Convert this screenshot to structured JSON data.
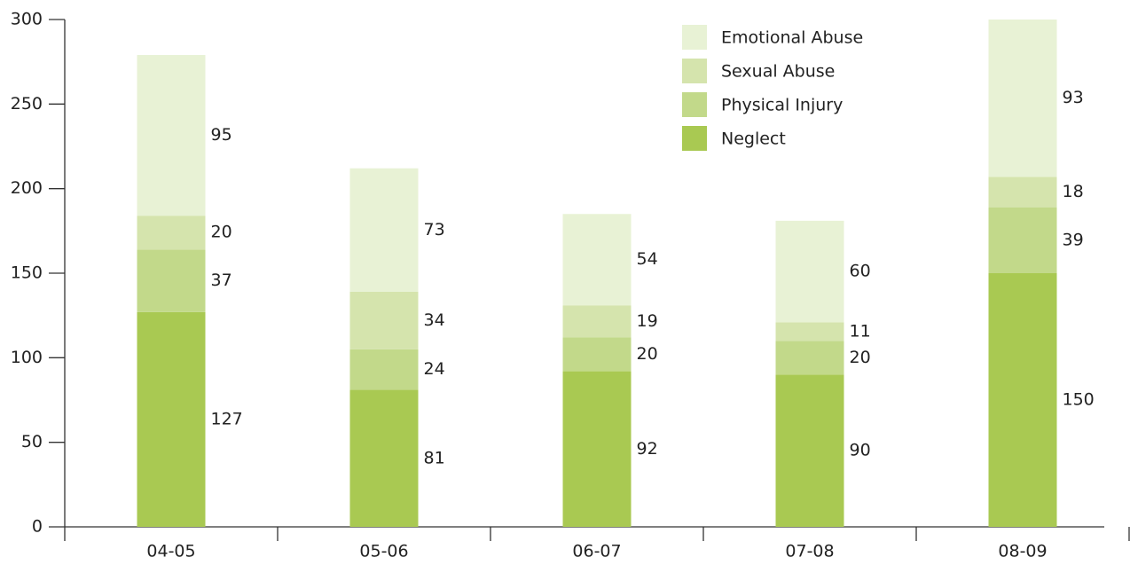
{
  "chart_data": {
    "type": "stacked_bar",
    "categories": [
      "04-05",
      "05-06",
      "06-07",
      "07-08",
      "08-09"
    ],
    "series": [
      {
        "name": "Neglect",
        "color": "#a9c952",
        "values": [
          127,
          81,
          92,
          90,
          150
        ]
      },
      {
        "name": "Physical Injury",
        "color": "#c2d98a",
        "values": [
          37,
          24,
          20,
          20,
          39
        ]
      },
      {
        "name": "Sexual Abuse",
        "color": "#d5e4ad",
        "values": [
          20,
          34,
          19,
          11,
          18
        ]
      },
      {
        "name": "Emotional Abuse",
        "color": "#e8f2d5",
        "values": [
          95,
          73,
          54,
          60,
          93
        ]
      }
    ],
    "ylim": [
      0,
      300
    ],
    "yticks": [
      0,
      50,
      100,
      150,
      200,
      250,
      300
    ],
    "grid": false,
    "legend": "top-right"
  }
}
